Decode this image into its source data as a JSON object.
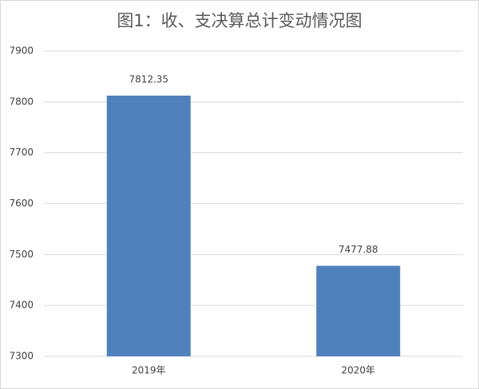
{
  "chart_data": {
    "type": "bar",
    "title": "图1：收、支决算总计变动情况图",
    "categories": [
      "2019年",
      "2020年"
    ],
    "values": [
      7812.35,
      7477.88
    ],
    "color": "#4f81bd",
    "ylim": [
      7300,
      7900
    ],
    "yticks": [
      7300,
      7400,
      7500,
      7600,
      7700,
      7800,
      7900
    ],
    "grid": true
  }
}
